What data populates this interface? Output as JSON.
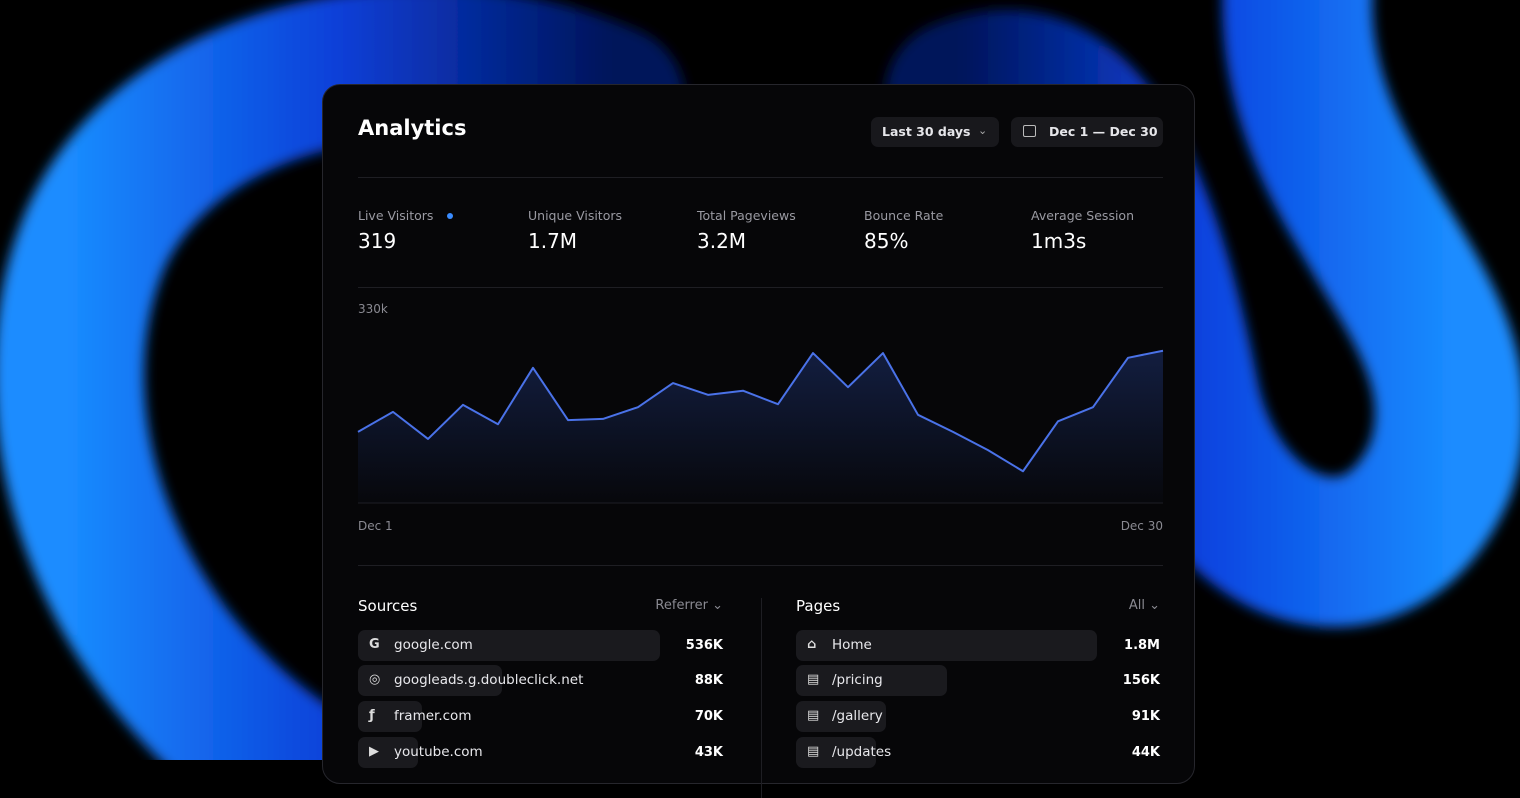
{
  "header": {
    "title": "Analytics",
    "period": "Last 30 days",
    "date_range": "Dec 1 — Dec 30"
  },
  "stats": [
    {
      "label": "Live Visitors",
      "value": "319"
    },
    {
      "label": "Unique Visitors",
      "value": "1.7M"
    },
    {
      "label": "Total Pageviews",
      "value": "3.2M"
    },
    {
      "label": "Bounce Rate",
      "value": "85%"
    },
    {
      "label": "Average Session",
      "value": "1m3s"
    }
  ],
  "chart_data": {
    "type": "line",
    "categories": [
      "Dec 1",
      null,
      null,
      null,
      null,
      null,
      null,
      null,
      null,
      null,
      null,
      null,
      null,
      null,
      null,
      null,
      null,
      null,
      null,
      null,
      null,
      null,
      null,
      "Dec 30"
    ],
    "series": [
      {
        "color": "#4a72e8",
        "values": [
          121000,
          155000,
          109000,
          167000,
          134000,
          230000,
          141000,
          143000,
          163000,
          204000,
          184000,
          191000,
          168000,
          255000,
          197000,
          255000,
          150000,
          121000,
          90000,
          54000,
          139000,
          163000,
          247000,
          259000
        ]
      }
    ],
    "ylim": [
      0,
      330000
    ],
    "yticks": [
      {
        "value": 330000,
        "label": "330k"
      }
    ],
    "grid": false
  },
  "sources": {
    "title": "Sources",
    "filter": "Referrer",
    "rows": [
      {
        "name": "google.com",
        "value": "536K"
      },
      {
        "name": "googleads.g.doubleclick.net",
        "value": "88K"
      },
      {
        "name": "framer.com",
        "value": "70K"
      },
      {
        "name": "youtube.com",
        "value": "43K"
      }
    ]
  },
  "pages": {
    "title": "Pages",
    "filter": "All",
    "rows": [
      {
        "name": "Home",
        "value": "1.8M"
      },
      {
        "name": "/pricing",
        "value": "156K"
      },
      {
        "name": "/gallery",
        "value": "91K"
      },
      {
        "name": "/updates",
        "value": "44K"
      }
    ]
  }
}
